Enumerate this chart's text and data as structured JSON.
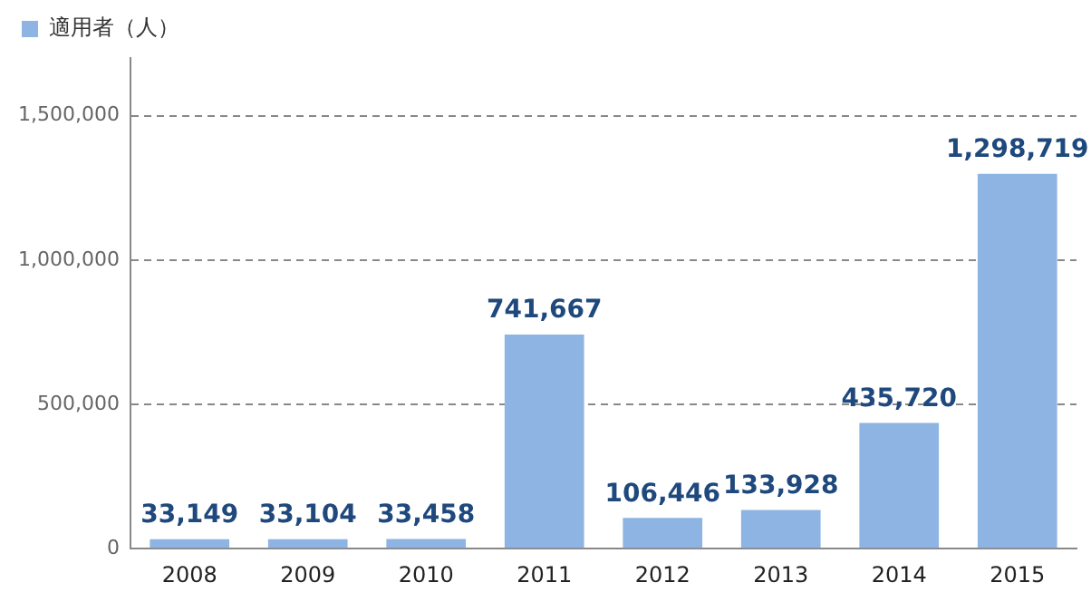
{
  "chart_data": {
    "type": "bar",
    "categories": [
      "2008",
      "2009",
      "2010",
      "2011",
      "2012",
      "2013",
      "2014",
      "2015"
    ],
    "series": [
      {
        "name": "適用者（人）",
        "color": "#8db4e2",
        "values": [
          33149,
          33104,
          33458,
          741667,
          106446,
          133928,
          435720,
          1298719
        ],
        "value_labels": [
          "33,149",
          "33,104",
          "33,458",
          "741,667",
          "106,446",
          "133,928",
          "435,720",
          "1,298,719"
        ]
      }
    ],
    "ylim": [
      0,
      1700000
    ],
    "yticks": [
      0,
      {
        "value": 500000,
        "label": "500,000"
      },
      {
        "value": 1000000,
        "label": "1,000,000"
      },
      {
        "value": 1500000,
        "label": "1,500,000"
      }
    ],
    "grid": "y",
    "legend": "top left"
  }
}
